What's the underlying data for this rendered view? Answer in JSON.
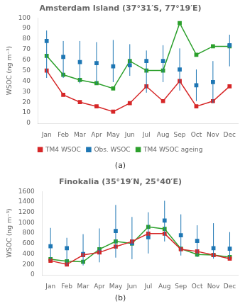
{
  "chart_data": [
    {
      "type": "line",
      "title": "Amsterdam Island (37°31′S, 77°19′E)",
      "y_label": "WSOC (ng m⁻³)",
      "categories": [
        "Jan",
        "Feb",
        "Mar",
        "Apr",
        "May",
        "Jun",
        "Jul",
        "Aug",
        "Sep",
        "Oct",
        "Nov",
        "Dec"
      ],
      "series": [
        {
          "name": "TM4 WSOC",
          "color": "#d62728",
          "marker": "square",
          "line_style": "solid",
          "values": [
            50,
            27,
            20,
            16,
            11,
            19,
            35,
            21,
            40,
            16,
            21,
            35
          ]
        },
        {
          "name": "Obs. WSOC",
          "color": "#1f77b4",
          "marker": "square",
          "line_style": "none",
          "values": [
            78,
            63,
            58,
            57,
            54,
            55,
            59,
            59,
            51,
            36,
            39,
            74
          ],
          "error_lo": [
            35,
            20,
            20,
            20,
            15,
            10,
            30,
            20,
            20,
            15,
            20,
            20
          ],
          "error_hi": [
            10,
            15,
            20,
            20,
            25,
            20,
            10,
            15,
            20,
            15,
            20,
            10
          ]
        },
        {
          "name": "TM4 WSOC ageing",
          "color": "#2ca02c",
          "marker": "square",
          "line_style": "solid",
          "values": [
            64,
            46,
            41,
            38,
            33,
            59,
            50,
            50,
            95,
            65,
            73,
            73
          ]
        }
      ],
      "ylim": [
        0,
        100
      ],
      "yticks": [
        0,
        10,
        20,
        30,
        40,
        50,
        60,
        70,
        80,
        90,
        100
      ],
      "grid": false,
      "legend": "bottom",
      "annotations": [
        "(a)"
      ]
    },
    {
      "type": "line",
      "title": "Finokalia (35°19′N, 25°40′E)",
      "y_label": "WSOC (ng m⁻³)",
      "categories": [
        "Jan",
        "Feb",
        "Mar",
        "Apr",
        "May",
        "Jun",
        "Jul",
        "Aug",
        "Sep",
        "Oct",
        "Nov",
        "Dec"
      ],
      "series": [
        {
          "name": "TM4 WSOC",
          "color": "#d62728",
          "marker": "square",
          "line_style": "solid",
          "values": [
            270,
            200,
            380,
            430,
            540,
            640,
            790,
            790,
            490,
            450,
            380,
            310
          ]
        },
        {
          "name": "Obs. WSOC",
          "color": "#1f77b4",
          "marker": "square",
          "line_style": "none",
          "values": [
            550,
            510,
            400,
            440,
            840,
            610,
            720,
            1040,
            760,
            650,
            510,
            500
          ],
          "error_lo": [
            280,
            330,
            220,
            200,
            510,
            310,
            310,
            400,
            390,
            310,
            200,
            200
          ],
          "error_hi": [
            350,
            200,
            380,
            450,
            500,
            500,
            480,
            380,
            400,
            300,
            480,
            320
          ]
        },
        {
          "name": "TM4 WSOC ageing",
          "color": "#2ca02c",
          "marker": "square",
          "line_style": "solid",
          "values": [
            300,
            260,
            250,
            490,
            640,
            600,
            920,
            880,
            500,
            390,
            380,
            340
          ]
        }
      ],
      "ylim": [
        0,
        1600
      ],
      "yticks": [
        0,
        200,
        400,
        600,
        800,
        1000,
        1200,
        1400,
        1600
      ],
      "grid": false,
      "annotations": [
        "(b)"
      ]
    }
  ]
}
